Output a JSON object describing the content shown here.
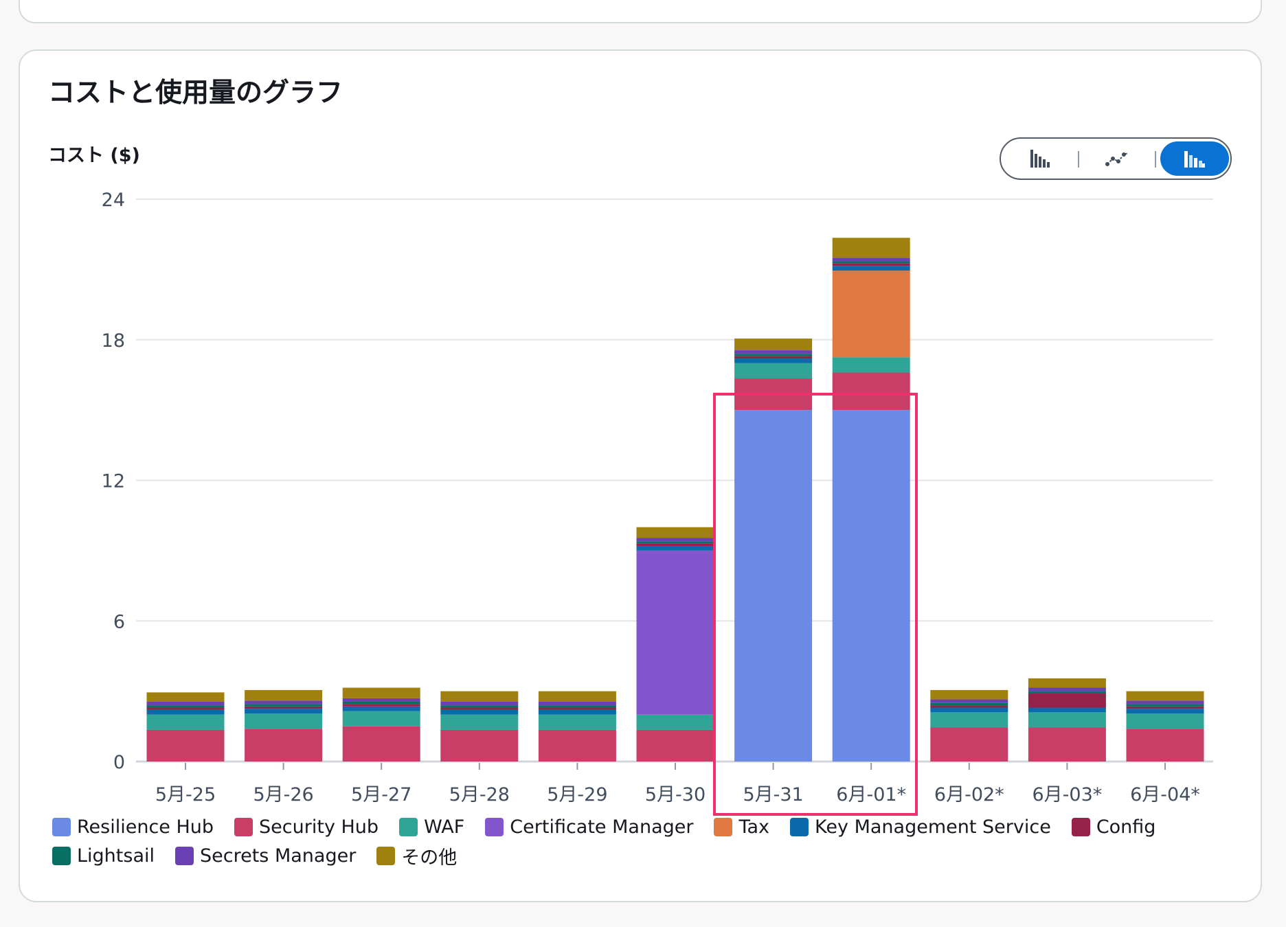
{
  "card": {
    "title": "コストと使用量のグラフ",
    "y_title": "コスト ($)"
  },
  "chart_type_toggle": {
    "options": [
      "bar-chart-icon",
      "line-chart-icon",
      "stacked-bar-chart-icon"
    ],
    "selected": "stacked-bar-chart-icon"
  },
  "colors": {
    "Resilience Hub": "#6b8ae6",
    "Security Hub": "#c83e67",
    "WAF": "#2ea597",
    "Certificate Manager": "#8456ce",
    "Tax": "#e07941",
    "Key Management Service": "#0b6aab",
    "Config": "#962249",
    "Lightsail": "#096f64",
    "Secrets Manager": "#6b40b2",
    "その他": "#a0800f"
  },
  "chart_data": {
    "type": "bar",
    "stacked": true,
    "categories": [
      "5月-25",
      "5月-26",
      "5月-27",
      "5月-28",
      "5月-29",
      "5月-30",
      "5月-31",
      "6月-01*",
      "6月-02*",
      "6月-03*",
      "6月-04*"
    ],
    "ylim": [
      0,
      24
    ],
    "yticks": [
      0,
      6,
      12,
      18,
      24
    ],
    "grid": true,
    "legend_position": "bottom",
    "series": [
      {
        "name": "Resilience Hub",
        "values": [
          0,
          0,
          0,
          0,
          0,
          0,
          15.0,
          15.0,
          0,
          0,
          0
        ]
      },
      {
        "name": "Security Hub",
        "values": [
          1.35,
          1.4,
          1.5,
          1.35,
          1.35,
          1.35,
          1.35,
          1.6,
          1.45,
          1.45,
          1.4
        ]
      },
      {
        "name": "WAF",
        "values": [
          0.65,
          0.65,
          0.65,
          0.65,
          0.65,
          0.65,
          0.65,
          0.65,
          0.65,
          0.65,
          0.65
        ]
      },
      {
        "name": "Certificate Manager",
        "values": [
          0,
          0,
          0,
          0,
          0,
          7.0,
          0,
          0,
          0,
          0,
          0
        ]
      },
      {
        "name": "Tax",
        "values": [
          0,
          0,
          0,
          0,
          0,
          0,
          0,
          3.7,
          0,
          0,
          0
        ]
      },
      {
        "name": "Key Management Service",
        "values": [
          0.2,
          0.2,
          0.2,
          0.2,
          0.2,
          0.2,
          0.2,
          0.2,
          0.2,
          0.2,
          0.2
        ]
      },
      {
        "name": "Config",
        "values": [
          0.1,
          0.1,
          0.1,
          0.1,
          0.1,
          0.1,
          0.1,
          0.1,
          0.1,
          0.6,
          0.1
        ]
      },
      {
        "name": "Lightsail",
        "values": [
          0.1,
          0.1,
          0.1,
          0.1,
          0.1,
          0.1,
          0.1,
          0.1,
          0.1,
          0.1,
          0.1
        ]
      },
      {
        "name": "Secrets Manager",
        "values": [
          0.15,
          0.15,
          0.15,
          0.15,
          0.15,
          0.15,
          0.15,
          0.15,
          0.15,
          0.15,
          0.15
        ]
      },
      {
        "name": "その他",
        "values": [
          0.4,
          0.45,
          0.45,
          0.45,
          0.45,
          0.45,
          0.5,
          0.85,
          0.4,
          0.4,
          0.4
        ]
      }
    ]
  }
}
